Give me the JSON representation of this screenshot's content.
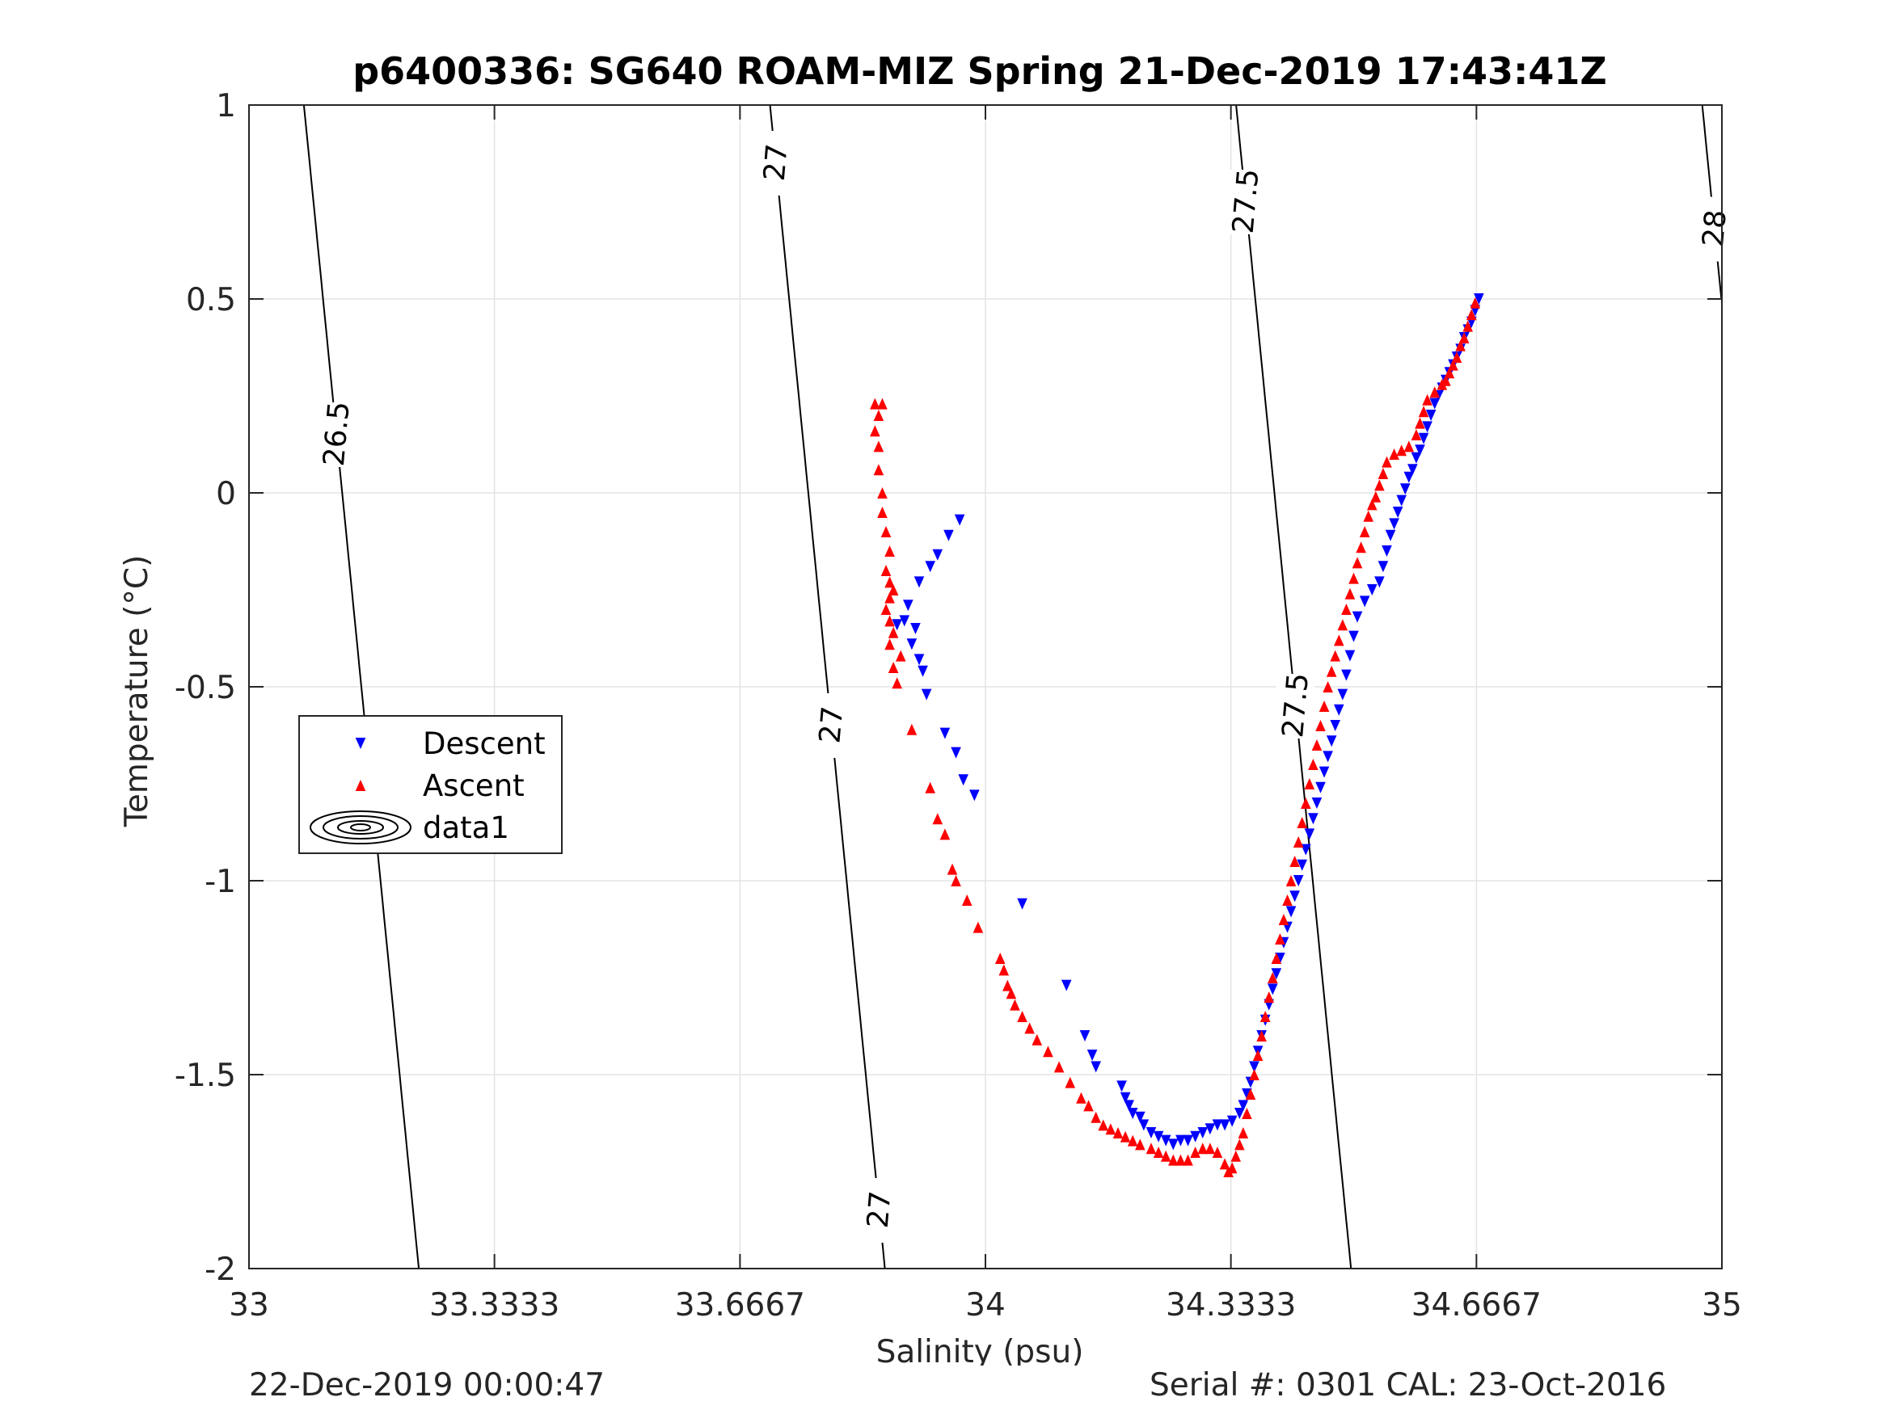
{
  "chart_data": {
    "type": "scatter",
    "title": "p6400336: SG640 ROAM-MIZ Spring 21-Dec-2019 17:43:41Z",
    "xlabel": "Salinity (psu)",
    "ylabel": "Temperature (°C)",
    "xlim": [
      33,
      35
    ],
    "ylim": [
      -2,
      1
    ],
    "xticks": [
      33,
      33.3333,
      33.6667,
      34,
      34.3333,
      34.6667,
      35
    ],
    "xtick_labels": [
      "33",
      "33.3333",
      "33.6667",
      "34",
      "34.3333",
      "34.6667",
      "35"
    ],
    "yticks": [
      -2,
      -1.5,
      -1,
      -0.5,
      0,
      0.5,
      1
    ],
    "ytick_labels": [
      "-2",
      "-1.5",
      "-1",
      "-0.5",
      "0",
      "0.5",
      "1"
    ],
    "grid": true,
    "legend_position": "left-middle",
    "series": [
      {
        "name": "Descent",
        "marker": "triangle-down",
        "color": "#0000ff",
        "points": [
          [
            34.67,
            0.5
          ],
          [
            34.665,
            0.47
          ],
          [
            34.66,
            0.44
          ],
          [
            34.655,
            0.42
          ],
          [
            34.65,
            0.4
          ],
          [
            34.645,
            0.37
          ],
          [
            34.64,
            0.35
          ],
          [
            34.635,
            0.33
          ],
          [
            34.63,
            0.31
          ],
          [
            34.625,
            0.29
          ],
          [
            34.62,
            0.27
          ],
          [
            34.615,
            0.25
          ],
          [
            34.61,
            0.23
          ],
          [
            34.605,
            0.2
          ],
          [
            34.6,
            0.17
          ],
          [
            34.595,
            0.14
          ],
          [
            34.59,
            0.11
          ],
          [
            34.585,
            0.09
          ],
          [
            34.58,
            0.06
          ],
          [
            34.575,
            0.04
          ],
          [
            34.57,
            0.01
          ],
          [
            34.565,
            -0.02
          ],
          [
            34.56,
            -0.05
          ],
          [
            34.555,
            -0.08
          ],
          [
            34.55,
            -0.11
          ],
          [
            34.545,
            -0.15
          ],
          [
            34.54,
            -0.19
          ],
          [
            34.535,
            -0.23
          ],
          [
            34.525,
            -0.25
          ],
          [
            34.515,
            -0.28
          ],
          [
            34.505,
            -0.32
          ],
          [
            34.5,
            -0.37
          ],
          [
            34.495,
            -0.42
          ],
          [
            34.49,
            -0.47
          ],
          [
            34.485,
            -0.52
          ],
          [
            34.48,
            -0.56
          ],
          [
            34.475,
            -0.6
          ],
          [
            34.47,
            -0.64
          ],
          [
            34.465,
            -0.68
          ],
          [
            34.46,
            -0.72
          ],
          [
            34.455,
            -0.76
          ],
          [
            34.45,
            -0.8
          ],
          [
            34.445,
            -0.84
          ],
          [
            34.44,
            -0.88
          ],
          [
            34.435,
            -0.92
          ],
          [
            34.43,
            -0.96
          ],
          [
            34.425,
            -1.0
          ],
          [
            34.42,
            -1.04
          ],
          [
            34.415,
            -1.08
          ],
          [
            34.41,
            -1.12
          ],
          [
            34.405,
            -1.16
          ],
          [
            34.4,
            -1.2
          ],
          [
            34.395,
            -1.24
          ],
          [
            34.39,
            -1.28
          ],
          [
            34.385,
            -1.32
          ],
          [
            34.38,
            -1.36
          ],
          [
            34.375,
            -1.4
          ],
          [
            34.37,
            -1.44
          ],
          [
            34.365,
            -1.48
          ],
          [
            34.36,
            -1.52
          ],
          [
            34.355,
            -1.55
          ],
          [
            34.35,
            -1.58
          ],
          [
            34.345,
            -1.6
          ],
          [
            34.335,
            -1.62
          ],
          [
            34.325,
            -1.63
          ],
          [
            34.315,
            -1.63
          ],
          [
            34.305,
            -1.64
          ],
          [
            34.295,
            -1.65
          ],
          [
            34.285,
            -1.66
          ],
          [
            34.275,
            -1.67
          ],
          [
            34.265,
            -1.67
          ],
          [
            34.255,
            -1.68
          ],
          [
            34.245,
            -1.67
          ],
          [
            34.235,
            -1.66
          ],
          [
            34.225,
            -1.65
          ],
          [
            34.215,
            -1.63
          ],
          [
            34.21,
            -1.61
          ],
          [
            34.2,
            -1.6
          ],
          [
            34.195,
            -1.58
          ],
          [
            34.19,
            -1.56
          ],
          [
            34.185,
            -1.53
          ],
          [
            34.15,
            -1.48
          ],
          [
            34.145,
            -1.45
          ],
          [
            34.135,
            -1.4
          ],
          [
            34.11,
            -1.27
          ],
          [
            34.05,
            -1.06
          ],
          [
            33.985,
            -0.78
          ],
          [
            33.97,
            -0.74
          ],
          [
            33.96,
            -0.67
          ],
          [
            33.945,
            -0.62
          ],
          [
            33.92,
            -0.52
          ],
          [
            33.915,
            -0.46
          ],
          [
            33.91,
            -0.43
          ],
          [
            33.9,
            -0.39
          ],
          [
            33.905,
            -0.35
          ],
          [
            33.89,
            -0.33
          ],
          [
            33.88,
            -0.34
          ],
          [
            33.895,
            -0.29
          ],
          [
            33.91,
            -0.23
          ],
          [
            33.925,
            -0.19
          ],
          [
            33.935,
            -0.16
          ],
          [
            33.95,
            -0.11
          ],
          [
            33.965,
            -0.07
          ]
        ]
      },
      {
        "name": "Ascent",
        "marker": "triangle-up",
        "color": "#ff0000",
        "points": [
          [
            34.665,
            0.49
          ],
          [
            34.66,
            0.46
          ],
          [
            34.655,
            0.43
          ],
          [
            34.65,
            0.4
          ],
          [
            34.645,
            0.38
          ],
          [
            34.64,
            0.35
          ],
          [
            34.635,
            0.33
          ],
          [
            34.63,
            0.31
          ],
          [
            34.625,
            0.29
          ],
          [
            34.62,
            0.28
          ],
          [
            34.61,
            0.26
          ],
          [
            34.6,
            0.24
          ],
          [
            34.595,
            0.21
          ],
          [
            34.59,
            0.18
          ],
          [
            34.585,
            0.15
          ],
          [
            34.575,
            0.12
          ],
          [
            34.565,
            0.11
          ],
          [
            34.555,
            0.1
          ],
          [
            34.545,
            0.08
          ],
          [
            34.54,
            0.05
          ],
          [
            34.535,
            0.02
          ],
          [
            34.53,
            -0.01
          ],
          [
            34.525,
            -0.03
          ],
          [
            34.52,
            -0.06
          ],
          [
            34.515,
            -0.1
          ],
          [
            34.51,
            -0.14
          ],
          [
            34.505,
            -0.18
          ],
          [
            34.5,
            -0.22
          ],
          [
            34.495,
            -0.26
          ],
          [
            34.49,
            -0.3
          ],
          [
            34.485,
            -0.34
          ],
          [
            34.48,
            -0.38
          ],
          [
            34.475,
            -0.42
          ],
          [
            34.47,
            -0.46
          ],
          [
            34.465,
            -0.5
          ],
          [
            34.46,
            -0.55
          ],
          [
            34.455,
            -0.6
          ],
          [
            34.45,
            -0.65
          ],
          [
            34.445,
            -0.7
          ],
          [
            34.44,
            -0.75
          ],
          [
            34.435,
            -0.8
          ],
          [
            34.43,
            -0.85
          ],
          [
            34.425,
            -0.9
          ],
          [
            34.42,
            -0.95
          ],
          [
            34.415,
            -1.0
          ],
          [
            34.41,
            -1.05
          ],
          [
            34.405,
            -1.1
          ],
          [
            34.4,
            -1.15
          ],
          [
            34.395,
            -1.2
          ],
          [
            34.39,
            -1.25
          ],
          [
            34.385,
            -1.3
          ],
          [
            34.38,
            -1.35
          ],
          [
            34.375,
            -1.4
          ],
          [
            34.37,
            -1.45
          ],
          [
            34.365,
            -1.5
          ],
          [
            34.36,
            -1.55
          ],
          [
            34.355,
            -1.6
          ],
          [
            34.35,
            -1.65
          ],
          [
            34.345,
            -1.68
          ],
          [
            34.34,
            -1.71
          ],
          [
            34.335,
            -1.74
          ],
          [
            34.33,
            -1.75
          ],
          [
            34.325,
            -1.73
          ],
          [
            34.315,
            -1.7
          ],
          [
            34.305,
            -1.69
          ],
          [
            34.295,
            -1.69
          ],
          [
            34.285,
            -1.7
          ],
          [
            34.275,
            -1.72
          ],
          [
            34.265,
            -1.72
          ],
          [
            34.255,
            -1.72
          ],
          [
            34.245,
            -1.71
          ],
          [
            34.235,
            -1.7
          ],
          [
            34.225,
            -1.69
          ],
          [
            34.21,
            -1.68
          ],
          [
            34.2,
            -1.67
          ],
          [
            34.19,
            -1.66
          ],
          [
            34.18,
            -1.65
          ],
          [
            34.17,
            -1.64
          ],
          [
            34.16,
            -1.63
          ],
          [
            34.15,
            -1.61
          ],
          [
            34.14,
            -1.58
          ],
          [
            34.13,
            -1.56
          ],
          [
            34.115,
            -1.52
          ],
          [
            34.1,
            -1.48
          ],
          [
            34.085,
            -1.44
          ],
          [
            34.07,
            -1.41
          ],
          [
            34.06,
            -1.38
          ],
          [
            34.05,
            -1.35
          ],
          [
            34.04,
            -1.32
          ],
          [
            34.035,
            -1.29
          ],
          [
            34.03,
            -1.27
          ],
          [
            34.025,
            -1.23
          ],
          [
            34.02,
            -1.2
          ],
          [
            33.99,
            -1.12
          ],
          [
            33.975,
            -1.05
          ],
          [
            33.96,
            -1.0
          ],
          [
            33.955,
            -0.97
          ],
          [
            33.945,
            -0.88
          ],
          [
            33.935,
            -0.84
          ],
          [
            33.925,
            -0.76
          ],
          [
            33.9,
            -0.61
          ],
          [
            33.88,
            -0.49
          ],
          [
            33.875,
            -0.45
          ],
          [
            33.885,
            -0.42
          ],
          [
            33.87,
            -0.39
          ],
          [
            33.875,
            -0.36
          ],
          [
            33.87,
            -0.33
          ],
          [
            33.865,
            -0.3
          ],
          [
            33.87,
            -0.27
          ],
          [
            33.875,
            -0.25
          ],
          [
            33.87,
            -0.23
          ],
          [
            33.865,
            -0.2
          ],
          [
            33.87,
            -0.15
          ],
          [
            33.865,
            -0.1
          ],
          [
            33.86,
            -0.05
          ],
          [
            33.86,
            0.0
          ],
          [
            33.855,
            0.06
          ],
          [
            33.855,
            0.12
          ],
          [
            33.85,
            0.16
          ],
          [
            33.855,
            0.2
          ],
          [
            33.85,
            0.23
          ],
          [
            33.86,
            0.23
          ]
        ]
      }
    ],
    "density_contours": {
      "levels": [
        26.5,
        27,
        27.5,
        28
      ],
      "labels": [
        "26.5",
        "27",
        "27",
        "27",
        "27.5",
        "27.5",
        "28",
        "28"
      ],
      "reference_temperature_slope_psu_per_degC": -0.052,
      "sigma_per_psu": 0.79,
      "sigma_at_s33_t0": 26.4,
      "color": "#000000"
    },
    "legend": {
      "entries": [
        "Descent",
        "Ascent",
        "data1"
      ]
    }
  },
  "footer": {
    "left": "22-Dec-2019 00:00:47",
    "right": "Serial #: 0301  CAL: 23-Oct-2016"
  }
}
